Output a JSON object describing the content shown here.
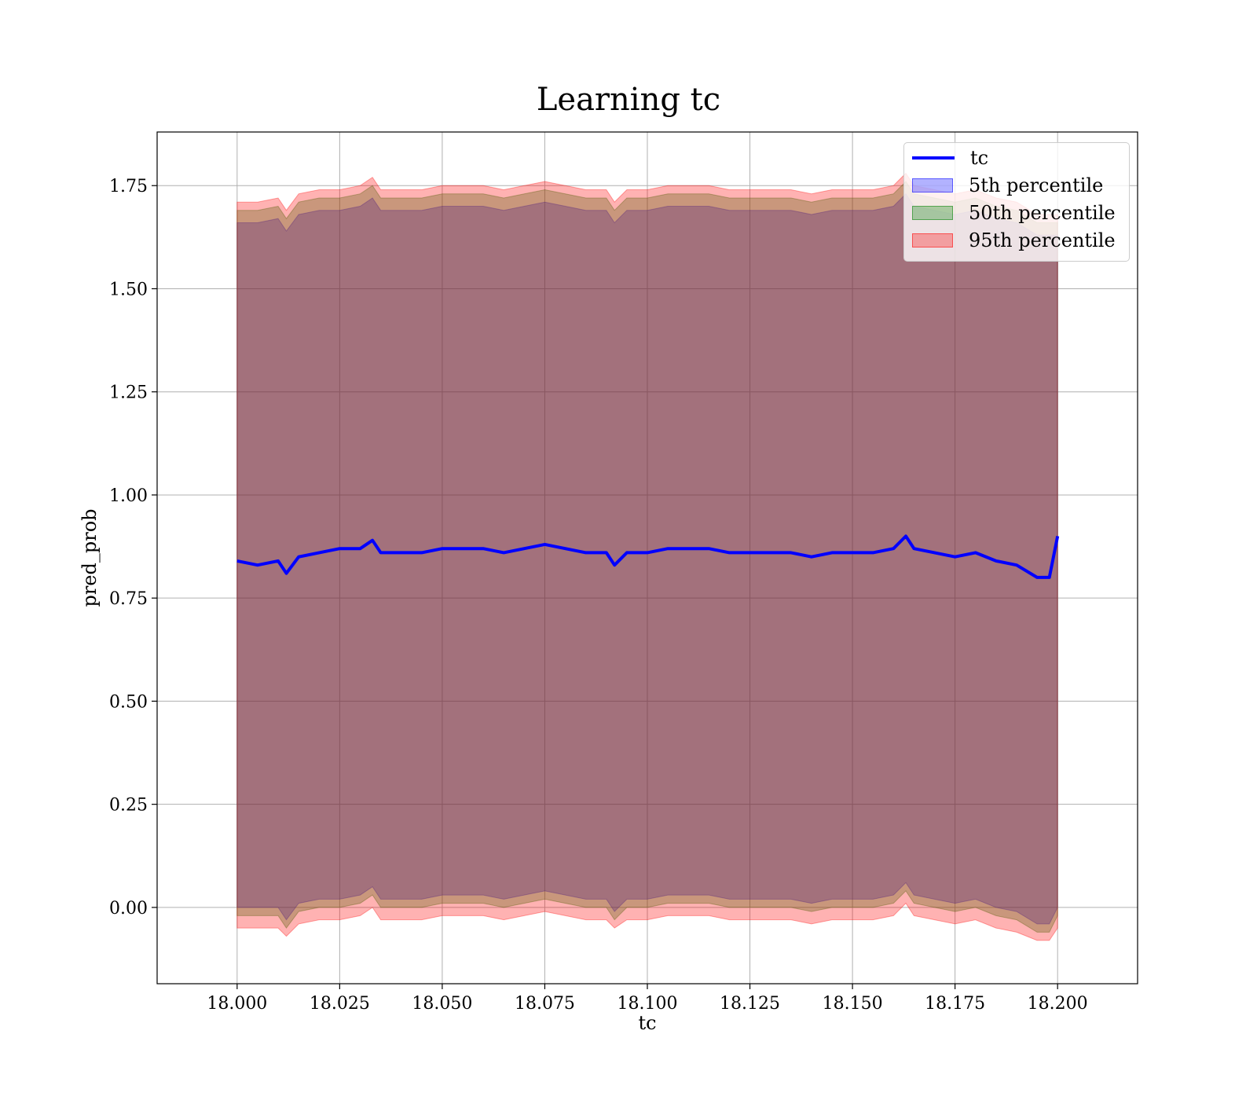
{
  "chart_data": {
    "type": "area",
    "title": "Learning tc",
    "xlabel": "tc",
    "ylabel": "pred_prob",
    "xlim": [
      17.9805,
      18.2195
    ],
    "ylim": [
      -0.185,
      1.88
    ],
    "x_ticks": [
      18.0,
      18.025,
      18.05,
      18.075,
      18.1,
      18.125,
      18.15,
      18.175,
      18.2
    ],
    "x_tick_labels": [
      "18.000",
      "18.025",
      "18.050",
      "18.075",
      "18.100",
      "18.125",
      "18.150",
      "18.175",
      "18.200"
    ],
    "y_ticks": [
      0.0,
      0.25,
      0.5,
      0.75,
      1.0,
      1.25,
      1.5,
      1.75
    ],
    "y_tick_labels": [
      "0.00",
      "0.25",
      "0.50",
      "0.75",
      "1.00",
      "1.25",
      "1.50",
      "1.75"
    ],
    "grid": true,
    "legend_position": "top-right",
    "x": [
      18.0,
      18.005,
      18.01,
      18.012,
      18.015,
      18.02,
      18.025,
      18.03,
      18.033,
      18.035,
      18.04,
      18.045,
      18.05,
      18.055,
      18.06,
      18.065,
      18.07,
      18.075,
      18.08,
      18.085,
      18.09,
      18.092,
      18.095,
      18.1,
      18.105,
      18.11,
      18.115,
      18.12,
      18.125,
      18.13,
      18.135,
      18.14,
      18.145,
      18.15,
      18.155,
      18.16,
      18.163,
      18.165,
      18.17,
      18.175,
      18.18,
      18.185,
      18.19,
      18.195,
      18.198,
      18.2
    ],
    "series": [
      {
        "name": "tc",
        "kind": "line",
        "color": "#0000ff",
        "values": [
          0.84,
          0.83,
          0.84,
          0.81,
          0.85,
          0.86,
          0.87,
          0.87,
          0.89,
          0.86,
          0.86,
          0.86,
          0.87,
          0.87,
          0.87,
          0.86,
          0.87,
          0.88,
          0.87,
          0.86,
          0.86,
          0.83,
          0.86,
          0.86,
          0.87,
          0.87,
          0.87,
          0.86,
          0.86,
          0.86,
          0.86,
          0.85,
          0.86,
          0.86,
          0.86,
          0.87,
          0.9,
          0.87,
          0.86,
          0.85,
          0.86,
          0.84,
          0.83,
          0.8,
          0.8,
          0.9
        ]
      },
      {
        "name": "5th percentile",
        "kind": "band",
        "color": "#0000ff",
        "values": [
          0.0,
          0.0,
          0.0,
          -0.03,
          0.01,
          0.02,
          0.02,
          0.03,
          0.05,
          0.02,
          0.02,
          0.02,
          0.03,
          0.03,
          0.03,
          0.02,
          0.03,
          0.04,
          0.03,
          0.02,
          0.02,
          -0.01,
          0.02,
          0.02,
          0.03,
          0.03,
          0.03,
          0.02,
          0.02,
          0.02,
          0.02,
          0.01,
          0.02,
          0.02,
          0.02,
          0.03,
          0.06,
          0.03,
          0.02,
          0.01,
          0.02,
          0.0,
          -0.01,
          -0.04,
          -0.04,
          0.0
        ],
        "upper": [
          1.66,
          1.66,
          1.67,
          1.64,
          1.68,
          1.69,
          1.69,
          1.7,
          1.72,
          1.69,
          1.69,
          1.69,
          1.7,
          1.7,
          1.7,
          1.69,
          1.7,
          1.71,
          1.7,
          1.69,
          1.69,
          1.66,
          1.69,
          1.69,
          1.7,
          1.7,
          1.7,
          1.69,
          1.69,
          1.69,
          1.69,
          1.68,
          1.69,
          1.69,
          1.69,
          1.7,
          1.73,
          1.7,
          1.69,
          1.68,
          1.69,
          1.67,
          1.66,
          1.63,
          1.63,
          1.63
        ]
      },
      {
        "name": "50th percentile",
        "kind": "band",
        "color": "#008000",
        "values": [
          -0.02,
          -0.02,
          -0.02,
          -0.05,
          -0.01,
          0.0,
          0.0,
          0.01,
          0.03,
          0.0,
          0.0,
          0.0,
          0.01,
          0.01,
          0.01,
          0.0,
          0.01,
          0.02,
          0.01,
          0.0,
          0.0,
          -0.03,
          0.0,
          0.0,
          0.01,
          0.01,
          0.01,
          0.0,
          0.0,
          0.0,
          0.0,
          -0.01,
          0.0,
          0.0,
          0.0,
          0.01,
          0.04,
          0.01,
          0.0,
          -0.01,
          0.0,
          -0.02,
          -0.03,
          -0.06,
          -0.06,
          -0.02
        ],
        "upper": [
          1.69,
          1.69,
          1.7,
          1.67,
          1.71,
          1.72,
          1.72,
          1.73,
          1.75,
          1.72,
          1.72,
          1.72,
          1.73,
          1.73,
          1.73,
          1.72,
          1.73,
          1.74,
          1.73,
          1.72,
          1.72,
          1.69,
          1.72,
          1.72,
          1.73,
          1.73,
          1.73,
          1.72,
          1.72,
          1.72,
          1.72,
          1.71,
          1.72,
          1.72,
          1.72,
          1.73,
          1.76,
          1.73,
          1.72,
          1.71,
          1.72,
          1.7,
          1.69,
          1.66,
          1.66,
          1.66
        ]
      },
      {
        "name": "95th percentile",
        "kind": "band",
        "color": "#ff0000",
        "values": [
          -0.05,
          -0.05,
          -0.05,
          -0.07,
          -0.04,
          -0.03,
          -0.03,
          -0.02,
          0.0,
          -0.03,
          -0.03,
          -0.03,
          -0.02,
          -0.02,
          -0.02,
          -0.03,
          -0.02,
          -0.01,
          -0.02,
          -0.03,
          -0.03,
          -0.05,
          -0.03,
          -0.03,
          -0.02,
          -0.02,
          -0.02,
          -0.03,
          -0.03,
          -0.03,
          -0.03,
          -0.04,
          -0.03,
          -0.03,
          -0.03,
          -0.02,
          0.01,
          -0.02,
          -0.03,
          -0.04,
          -0.03,
          -0.05,
          -0.06,
          -0.08,
          -0.08,
          -0.05
        ],
        "upper": [
          1.71,
          1.71,
          1.72,
          1.69,
          1.73,
          1.74,
          1.74,
          1.75,
          1.77,
          1.74,
          1.74,
          1.74,
          1.75,
          1.75,
          1.75,
          1.74,
          1.75,
          1.76,
          1.75,
          1.74,
          1.74,
          1.71,
          1.74,
          1.74,
          1.75,
          1.75,
          1.75,
          1.74,
          1.74,
          1.74,
          1.74,
          1.73,
          1.74,
          1.74,
          1.74,
          1.75,
          1.78,
          1.75,
          1.74,
          1.73,
          1.74,
          1.72,
          1.71,
          1.68,
          1.68,
          1.68
        ]
      }
    ]
  }
}
